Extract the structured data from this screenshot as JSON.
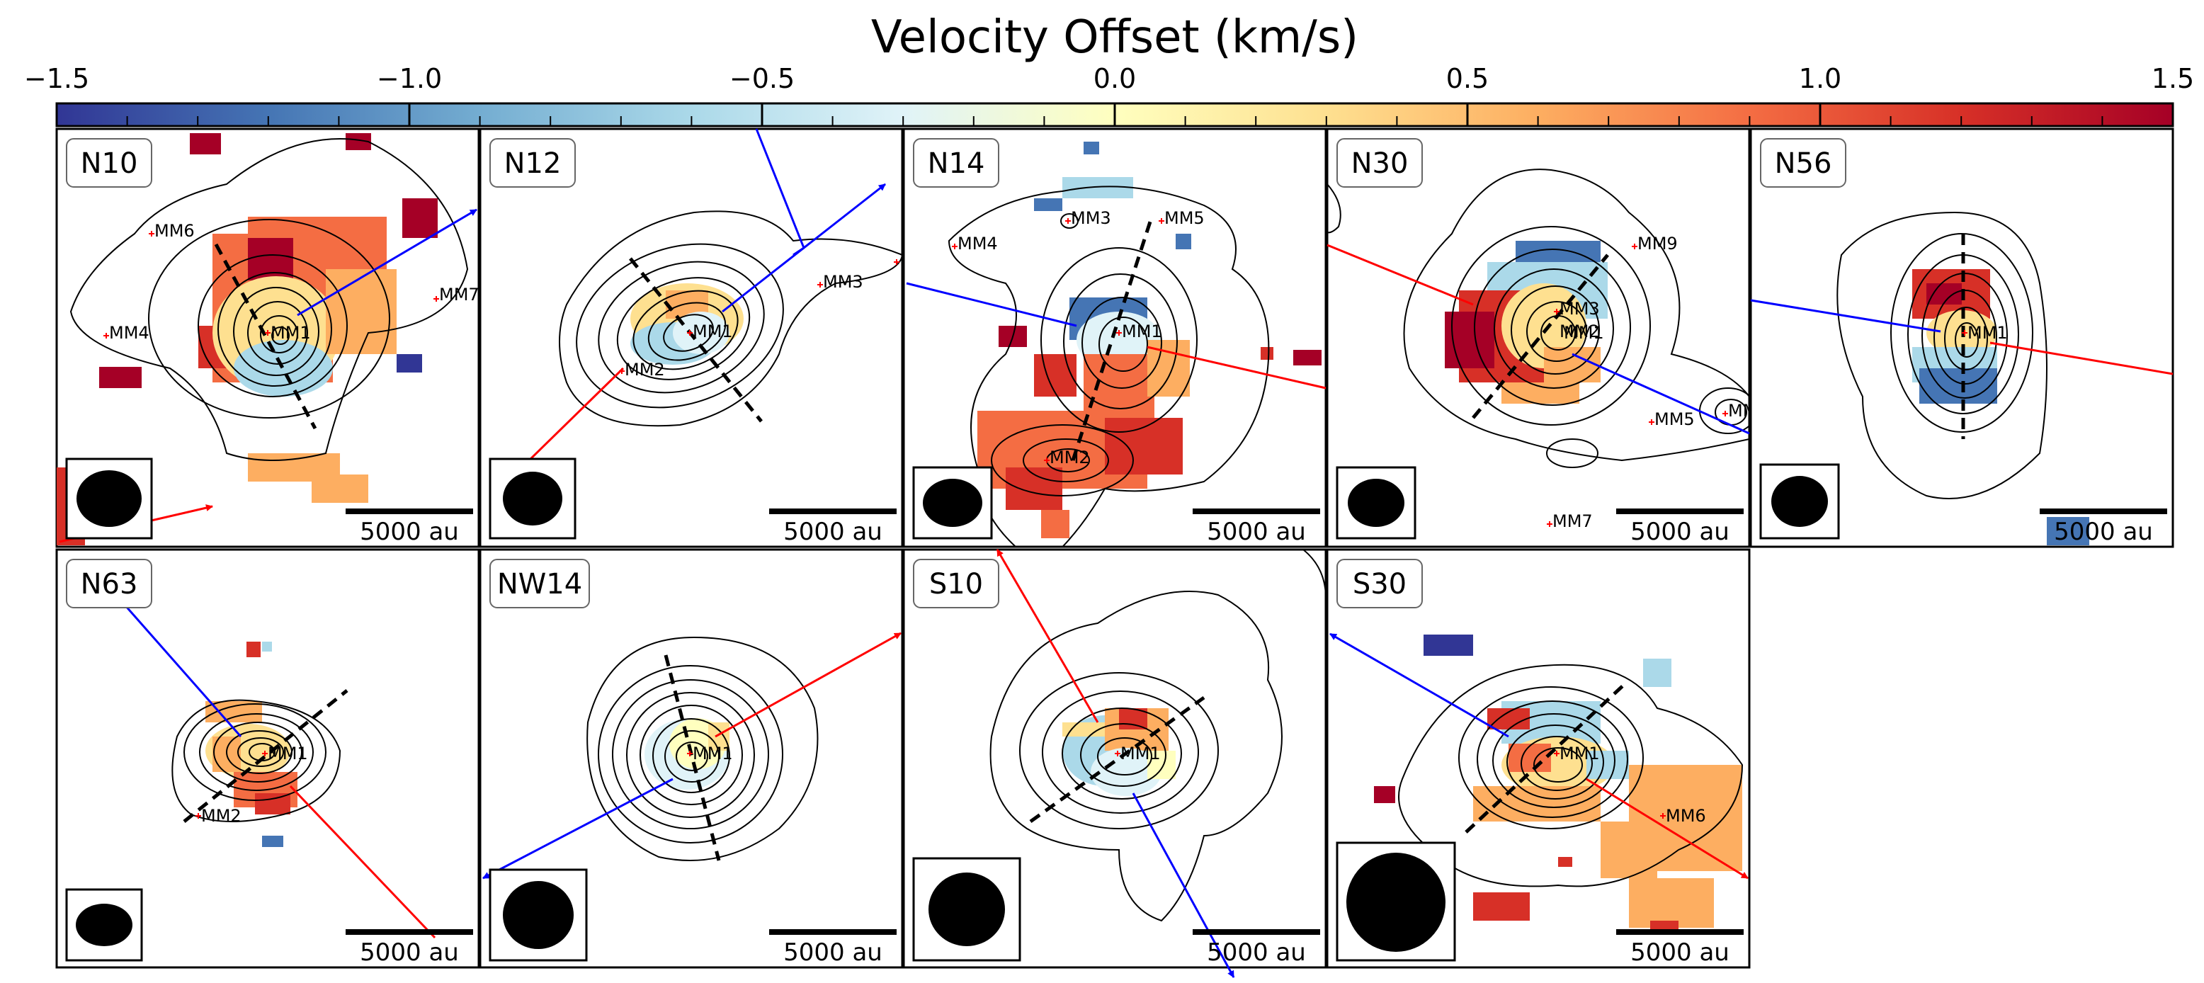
{
  "colorbar": {
    "title": "Velocity Offset (km/s)",
    "vmin": -1.5,
    "vmax": 1.5,
    "tick_labels": [
      "−1.5",
      "−1.0",
      "−0.5",
      "0.0",
      "0.5",
      "1.0",
      "1.5"
    ],
    "palette": [
      "#313695",
      "#4575b4",
      "#74add1",
      "#abd9e9",
      "#e0f3f8",
      "#ffffbf",
      "#fee090",
      "#fdae61",
      "#f46d43",
      "#d73027",
      "#a50026"
    ]
  },
  "colors": {
    "blue_outflow": "#0000ff",
    "red_outflow": "#ff0000",
    "source_marker": "#ff0000",
    "contour": "#000000"
  },
  "scale_bar_label": "5000 au",
  "panels": [
    {
      "id": "N10",
      "sources": [
        "MM1",
        "MM4",
        "MM6",
        "MM7"
      ]
    },
    {
      "id": "N12",
      "sources": [
        "MM1",
        "MM2",
        "MM3"
      ]
    },
    {
      "id": "N14",
      "sources": [
        "MM1",
        "MM2",
        "MM3",
        "MM4",
        "MM5"
      ]
    },
    {
      "id": "N30",
      "sources": [
        "MM1",
        "MM2",
        "MM3",
        "MM5",
        "MM7",
        "MM9"
      ]
    },
    {
      "id": "N56",
      "sources": [
        "MM1"
      ]
    },
    {
      "id": "N63",
      "sources": [
        "MM1",
        "MM2"
      ]
    },
    {
      "id": "NW14",
      "sources": [
        "MM1"
      ]
    },
    {
      "id": "S10",
      "sources": [
        "MM1"
      ]
    },
    {
      "id": "S30",
      "sources": [
        "MM1",
        "MM6"
      ]
    }
  ]
}
